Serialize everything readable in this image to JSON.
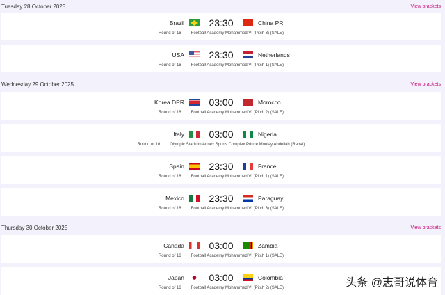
{
  "view_brackets_label": "View brackets",
  "days": [
    {
      "title": "Tuesday 28 October 2025",
      "matches": [
        {
          "home": "Brazil",
          "home_flag": "bra",
          "time": "23:30",
          "away": "China PR",
          "away_flag": "chn",
          "round": "Round of 16",
          "venue": "Football Academy Mohammed VI (Pitch 3) (SALE)"
        },
        {
          "home": "USA",
          "home_flag": "usa",
          "time": "23:30",
          "away": "Netherlands",
          "away_flag": "ned",
          "round": "Round of 16",
          "venue": "Football Academy Mohammed VI (Pitch 1) (SALE)"
        }
      ]
    },
    {
      "title": "Wednesday 29 October 2025",
      "matches": [
        {
          "home": "Korea DPR",
          "home_flag": "prk",
          "time": "03:00",
          "away": "Morocco",
          "away_flag": "mar",
          "round": "Round of 16",
          "venue": "Football Academy Mohammed VI (Pitch 2) (SALE)"
        },
        {
          "home": "Italy",
          "home_flag": "ita",
          "time": "03:00",
          "away": "Nigeria",
          "away_flag": "nga",
          "round": "Round of 16",
          "venue": "Olympic Stadium Annex Sports Complex Prince Moulay Abdellah (Rabat)"
        },
        {
          "home": "Spain",
          "home_flag": "esp",
          "time": "23:30",
          "away": "France",
          "away_flag": "fra",
          "round": "Round of 16",
          "venue": "Football Academy Mohammed VI (Pitch 1) (SALE)"
        },
        {
          "home": "Mexico",
          "home_flag": "mex",
          "time": "23:30",
          "away": "Paraguay",
          "away_flag": "par",
          "round": "Round of 16",
          "venue": "Football Academy Mohammed VI (Pitch 3) (SALE)"
        }
      ]
    },
    {
      "title": "Thursday 30 October 2025",
      "matches": [
        {
          "home": "Canada",
          "home_flag": "can",
          "time": "03:00",
          "away": "Zambia",
          "away_flag": "zam",
          "round": "Round of 16",
          "venue": "Football Academy Mohammed VI (Pitch 1) (SALE)"
        },
        {
          "home": "Japan",
          "home_flag": "jpn",
          "time": "03:00",
          "away": "Colombia",
          "away_flag": "col",
          "round": "Round of 16",
          "venue": "Football Academy Mohammed VI (Pitch 2) (SALE)"
        }
      ]
    }
  ],
  "watermark": "头条 @志哥说体育",
  "colors": {
    "background": "#f3f1fb",
    "link": "#c8107a",
    "card": "#ffffff"
  }
}
